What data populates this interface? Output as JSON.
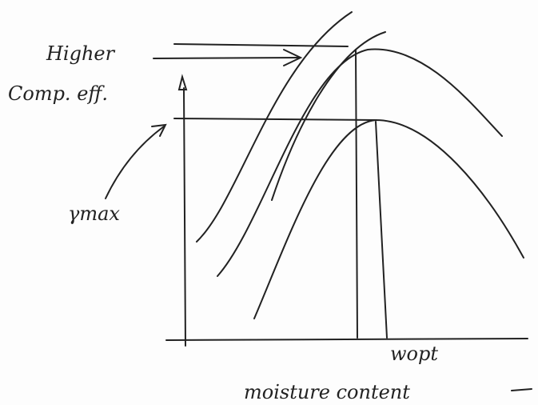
{
  "labels": {
    "higher": "Higher",
    "comp_eff": "Comp. eff.",
    "gamma_max": "γmax",
    "w_opt": "wopt",
    "x_axis": "moisture content"
  }
}
